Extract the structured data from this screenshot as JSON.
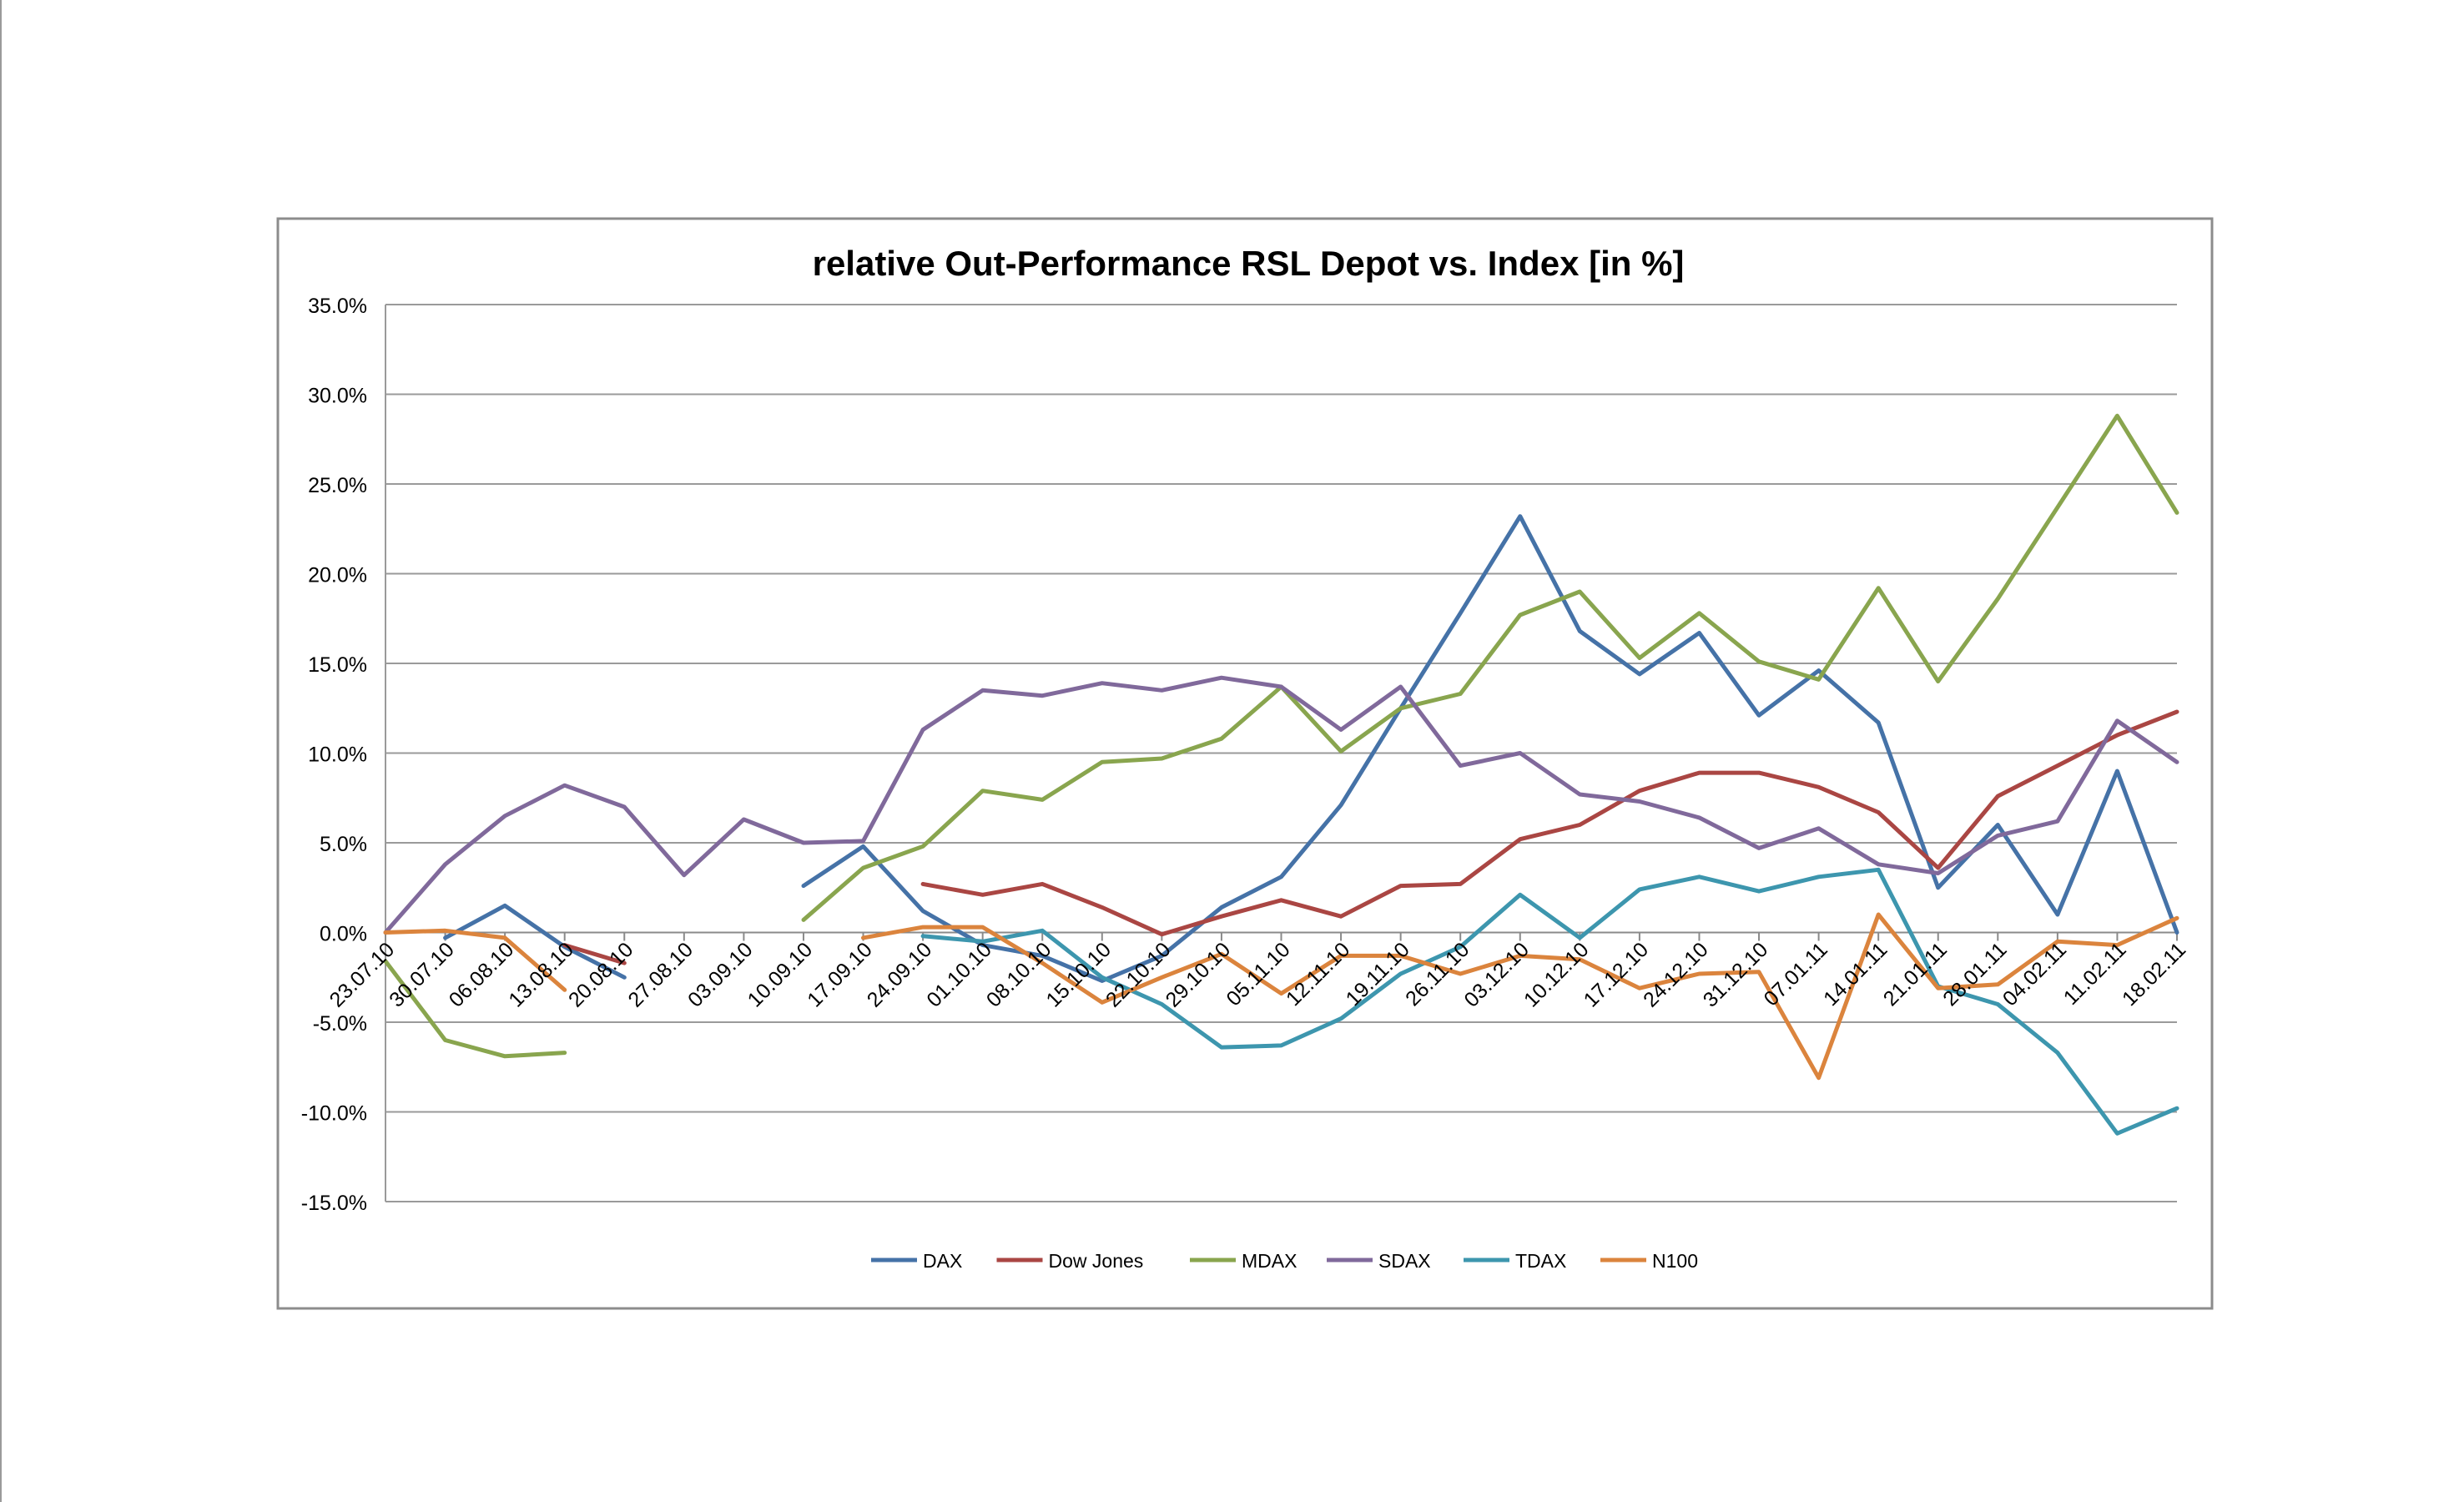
{
  "chart_data": {
    "type": "line",
    "title": "relative Out-Performance RSL Depot vs. Index [in %]",
    "xlabel": "",
    "ylabel": "",
    "ylim": [
      -15,
      35
    ],
    "y_ticks": [
      "35.0%",
      "30.0%",
      "25.0%",
      "20.0%",
      "15.0%",
      "10.0%",
      "5.0%",
      "0.0%",
      "-5.0%",
      "-10.0%",
      "-15.0%"
    ],
    "y_tick_values": [
      35,
      30,
      25,
      20,
      15,
      10,
      5,
      0,
      -5,
      -10,
      -15
    ],
    "grid": true,
    "legend": "bottom",
    "categories": [
      "23.07.10",
      "30.07.10",
      "06.08.10",
      "13.08.10",
      "20.08.10",
      "27.08.10",
      "03.09.10",
      "10.09.10",
      "17.09.10",
      "24.09.10",
      "01.10.10",
      "08.10.10",
      "15.10.10",
      "22.10.10",
      "29.10.10",
      "05.11.10",
      "12.11.10",
      "19.11.10",
      "26.11.10",
      "03.12.10",
      "10.12.10",
      "17.12.10",
      "24.12.10",
      "31.12.10",
      "07.01.11",
      "14.01.11",
      "21.01.11",
      "28.01.11",
      "04.02.11",
      "11.02.11",
      "18.02.11"
    ],
    "series": [
      {
        "name": "DAX",
        "color": "#4572A7",
        "values": [
          null,
          -0.3,
          1.5,
          -0.8,
          -2.5,
          null,
          null,
          2.6,
          4.8,
          1.2,
          -0.7,
          -1.3,
          -2.7,
          -1.3,
          1.4,
          3.1,
          7.1,
          12.5,
          17.8,
          23.2,
          16.8,
          14.4,
          16.7,
          12.1,
          14.6,
          11.7,
          2.5,
          6.0,
          1.0,
          9.0,
          0.0
        ]
      },
      {
        "name": "Dow Jones",
        "color": "#AA4643",
        "values": [
          null,
          null,
          null,
          -0.7,
          -1.7,
          null,
          null,
          null,
          null,
          2.7,
          2.1,
          2.7,
          1.4,
          -0.1,
          0.9,
          1.8,
          0.9,
          2.6,
          2.7,
          5.2,
          6.0,
          7.9,
          8.9,
          8.9,
          8.1,
          6.7,
          3.6,
          7.6,
          9.3,
          11.0,
          12.3
        ]
      },
      {
        "name": "MDAX",
        "color": "#89A54E",
        "values": [
          -1.6,
          -6.0,
          -6.9,
          -6.7,
          null,
          null,
          null,
          0.7,
          3.6,
          4.8,
          7.9,
          7.4,
          9.5,
          9.7,
          10.8,
          13.7,
          10.1,
          12.5,
          13.3,
          17.7,
          19.0,
          15.3,
          17.8,
          15.1,
          14.1,
          19.2,
          14.0,
          18.6,
          23.7,
          28.8,
          23.4
        ]
      },
      {
        "name": "SDAX",
        "color": "#80699B",
        "values": [
          0.0,
          3.8,
          6.5,
          8.2,
          7.0,
          3.2,
          6.3,
          5.0,
          5.1,
          11.3,
          13.5,
          13.2,
          13.9,
          13.5,
          14.2,
          13.7,
          11.3,
          13.7,
          9.3,
          10.0,
          7.7,
          7.3,
          6.4,
          4.7,
          5.8,
          3.8,
          3.3,
          5.4,
          6.2,
          11.8,
          9.5
        ]
      },
      {
        "name": "TDAX",
        "color": "#3D96AE",
        "values": [
          null,
          null,
          null,
          null,
          null,
          null,
          null,
          null,
          null,
          -0.2,
          -0.5,
          0.1,
          -2.5,
          -4.0,
          -6.4,
          -6.3,
          -4.8,
          -2.3,
          -0.8,
          2.1,
          -0.3,
          2.4,
          3.1,
          2.3,
          3.1,
          3.5,
          -3.0,
          -4.0,
          -6.7,
          -11.2,
          -9.8
        ]
      },
      {
        "name": "N100",
        "color": "#DB843D",
        "values": [
          0.0,
          0.1,
          -0.3,
          -3.2,
          null,
          null,
          null,
          null,
          -0.3,
          0.3,
          0.3,
          -1.7,
          -3.9,
          -2.5,
          -1.2,
          -3.4,
          -1.3,
          -1.3,
          -2.3,
          -1.3,
          -1.5,
          -3.1,
          -2.3,
          -2.2,
          -8.1,
          1.0,
          -3.1,
          -2.9,
          -0.5,
          -0.7,
          0.8
        ]
      }
    ]
  }
}
